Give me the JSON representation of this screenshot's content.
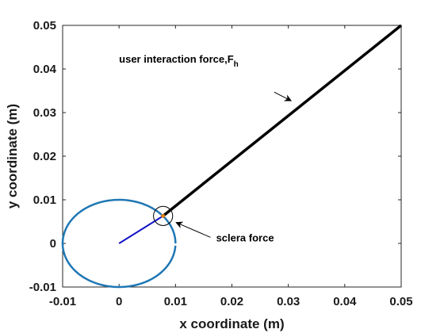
{
  "chart_data": {
    "type": "line",
    "xlabel": "x coordinate (m)",
    "ylabel": "y coordinate (m)",
    "xlim": [
      -0.01,
      0.05
    ],
    "ylim": [
      -0.01,
      0.05
    ],
    "xticks": [
      "-0.01",
      "0",
      "0.01",
      "0.02",
      "0.03",
      "0.04",
      "0.05"
    ],
    "yticks": [
      "-0.01",
      "0",
      "0.01",
      "0.02",
      "0.03",
      "0.04",
      "0.05"
    ],
    "grid": false,
    "series": [
      {
        "role": "arc",
        "color": "#1f77b4",
        "center": [
          0,
          0
        ],
        "radius": 0.01,
        "theta_start_deg": 0,
        "theta_end_deg": 357
      },
      {
        "role": "segment",
        "color": "#1414c8",
        "x": [
          0,
          0.0078
        ],
        "y": [
          0,
          0.0063
        ]
      },
      {
        "role": "segment",
        "color": "#000000",
        "x": [
          0.0078,
          0.05
        ],
        "y": [
          0.0063,
          0.05
        ]
      }
    ],
    "markers": [
      {
        "type": "circle-outline",
        "x": 0.0078,
        "y": 0.0063,
        "radius_data": 0.0017,
        "color": "#000000"
      },
      {
        "type": "dot",
        "x": 0.0078,
        "y": 0.0063,
        "color": "#e07b10"
      }
    ],
    "annotations": [
      {
        "label": "user interaction force,F",
        "subscript": "h",
        "anchor": [
          0.0,
          0.0415
        ],
        "arrow_from": [
          0.0275,
          0.0347
        ],
        "arrow_to": [
          0.0305,
          0.0327
        ]
      },
      {
        "label": "sclera force",
        "anchor": [
          0.0172,
          0.0005
        ],
        "arrow_from": [
          0.0162,
          0.0014
        ],
        "arrow_to": [
          0.0101,
          0.0048
        ]
      }
    ]
  }
}
